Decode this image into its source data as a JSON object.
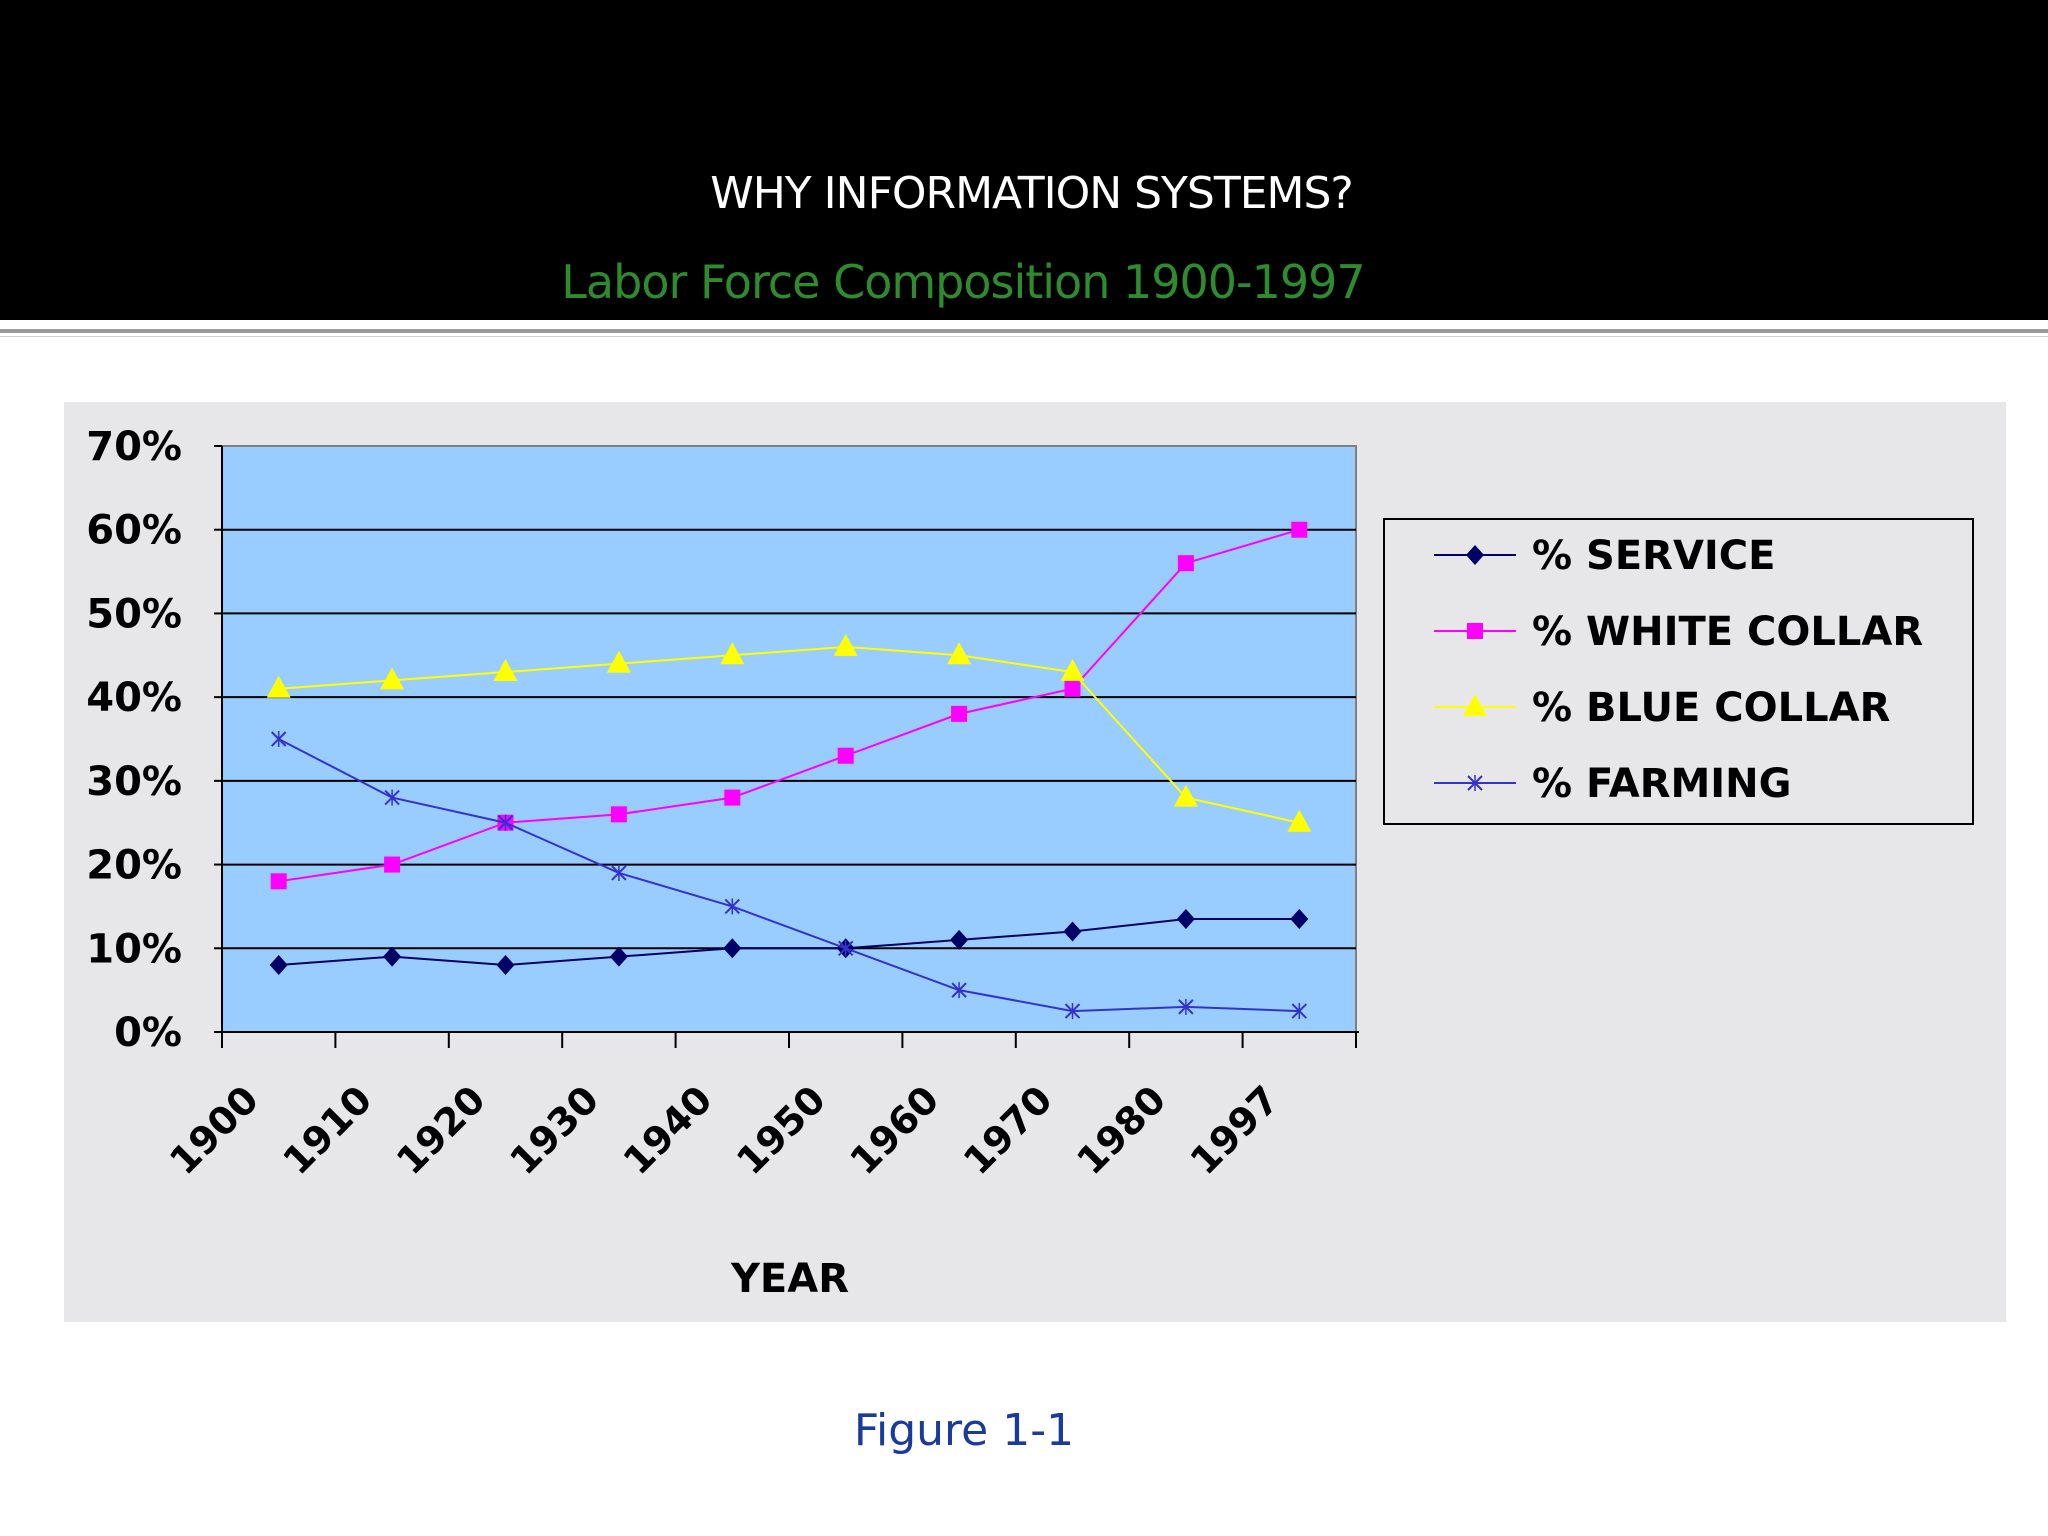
{
  "slide": {
    "title": "WHY INFORMATION SYSTEMS?",
    "subtitle": "Labor Force Composition 1900-1997",
    "caption": "Figure 1-1"
  },
  "colors": {
    "header_bg": "#000000",
    "plot_bg": "#99ccff",
    "panel_bg": "#e7e7ea",
    "subtitle": "#2e8b2e",
    "caption": "#1a3a9c"
  },
  "chart_data": {
    "type": "line",
    "xlabel": "YEAR",
    "ylabel": "",
    "categories": [
      "1900",
      "1910",
      "1920",
      "1930",
      "1940",
      "1950",
      "1960",
      "1970",
      "1980",
      "1997"
    ],
    "ylim": [
      0,
      70
    ],
    "yticks": [
      "0%",
      "10%",
      "20%",
      "30%",
      "40%",
      "50%",
      "60%",
      "70%"
    ],
    "grid": true,
    "legend_position": "right",
    "series": [
      {
        "name": "% SERVICE",
        "color": "#000066",
        "marker": "diamond",
        "values": [
          8,
          9,
          8,
          9,
          10,
          10,
          11,
          12,
          13.5,
          13.5
        ]
      },
      {
        "name": "% WHITE COLLAR",
        "color": "#ff00ff",
        "marker": "square",
        "values": [
          18,
          20,
          25,
          26,
          28,
          33,
          38,
          41,
          56,
          60
        ]
      },
      {
        "name": "% BLUE COLLAR",
        "color": "#ffff00",
        "marker": "triangle",
        "values": [
          41,
          42,
          43,
          44,
          45,
          46,
          45,
          43,
          28,
          25
        ]
      },
      {
        "name": "% FARMING",
        "color": "#3333cc",
        "marker": "x",
        "values": [
          35,
          28,
          25,
          19,
          15,
          10,
          5,
          2.5,
          3,
          2.5
        ]
      }
    ]
  }
}
